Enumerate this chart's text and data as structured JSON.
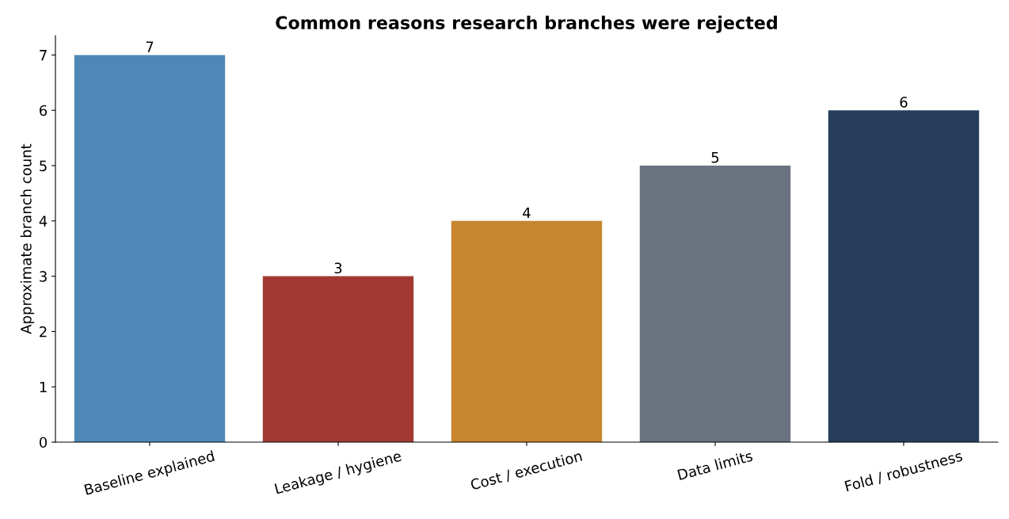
{
  "chart_data": {
    "type": "bar",
    "title": "Common reasons research branches were rejected",
    "ylabel": "Approximate branch count",
    "categories": [
      "Baseline explained",
      "Leakage / hygiene",
      "Cost / execution",
      "Data limits",
      "Fold / robustness"
    ],
    "values": [
      7,
      3,
      4,
      5,
      6
    ],
    "colors": [
      "#4f88b6",
      "#a23a33",
      "#c6852e",
      "#6b7280",
      "#263d5c"
    ],
    "ylim": [
      0,
      7.35
    ],
    "yticks": [
      0,
      1,
      2,
      3,
      4,
      5,
      6,
      7
    ],
    "data_labels": true,
    "grid": false,
    "legend": false
  }
}
